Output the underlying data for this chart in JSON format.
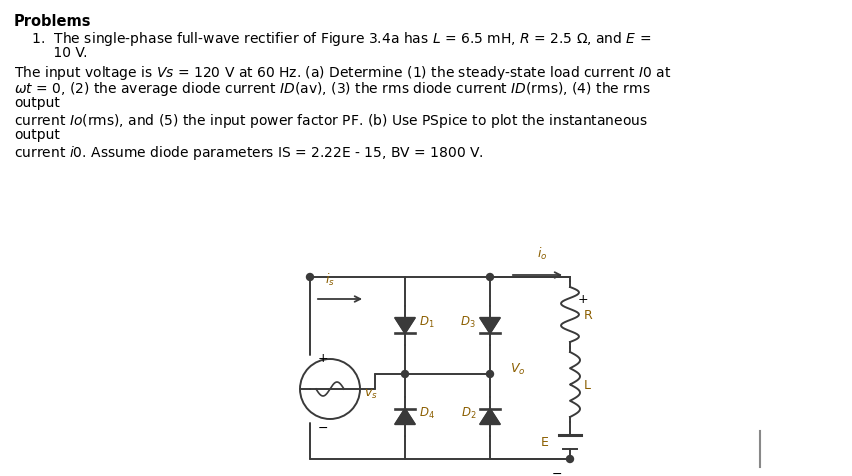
{
  "background_color": "#ffffff",
  "text_color": "#000000",
  "circuit_color": "#3a3a3a",
  "label_color": "#8b5e00",
  "line1": "Problems",
  "line2": "    1.  The single-phase full-wave rectifier of Figure 3.4a has $L$ = 6.5 mH, $R$ = 2.5 Ω, and $E$ =",
  "line3": "         10 V.",
  "line4": "The input voltage is $Vs$ = 120 V at 60 Hz. (a) Determine (1) the steady-state load current $I$0 at",
  "line5": "$ωt$ = 0, (2) the average diode current $ID$(av), (3) the rms diode current $ID$(rms), (4) the rms",
  "line6": "output",
  "line7": "current $Io$(rms), and (5) the input power factor PF. (b) Use PSpice to plot the instantaneous",
  "line8": "output",
  "line9": "current $i$0. Assume diode parameters IS = 2.22E - 15, BV = 1800 V."
}
